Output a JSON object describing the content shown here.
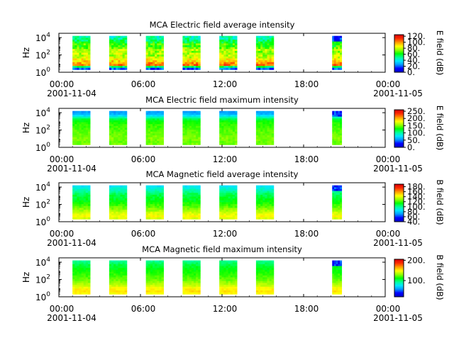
{
  "chart_data": [
    {
      "type": "heatmap",
      "title": "MCA  Electric field average intensity",
      "ylabel": "Hz",
      "colorbar_label": "E field (dB)",
      "colorbar_range": [
        0,
        125
      ],
      "colorbar_ticks": [
        "0.",
        "20.",
        "40.",
        "60.",
        "80.",
        "100.",
        "120."
      ],
      "colorbar_tick_values": [
        0,
        20,
        40,
        60,
        80,
        100,
        120
      ],
      "ylim_log10": [
        0,
        4.5
      ],
      "y_ticks": [
        {
          "base": "10",
          "exp": "0",
          "log": 0
        },
        {
          "base": "10",
          "exp": "2",
          "log": 2
        },
        {
          "base": "10",
          "exp": "4",
          "log": 4
        }
      ],
      "x_ticks": [
        {
          "time": "00:00",
          "date": "2001-11-04",
          "hour": 0
        },
        {
          "time": "06:00",
          "date": "",
          "hour": 6
        },
        {
          "time": "12:00",
          "date": "",
          "hour": 12
        },
        {
          "time": "18:00",
          "date": "",
          "hour": 18
        },
        {
          "time": "00:00",
          "date": "2001-11-05",
          "hour": 24
        }
      ],
      "profile": [
        20,
        55,
        105,
        100,
        92,
        88,
        82,
        78,
        80,
        75,
        80,
        72,
        65,
        68,
        60,
        55,
        50,
        45
      ],
      "noise": 10
    },
    {
      "type": "heatmap",
      "title": "MCA  Electric field maximum intensity",
      "ylabel": "Hz",
      "colorbar_label": "E field (dB)",
      "colorbar_range": [
        0,
        260
      ],
      "colorbar_ticks": [
        "0.",
        "50.",
        "100.",
        "150.",
        "200.",
        "250."
      ],
      "colorbar_tick_values": [
        0,
        50,
        100,
        150,
        200,
        250
      ],
      "ylim_log10": [
        0,
        4.5
      ],
      "y_ticks": [
        {
          "base": "10",
          "exp": "0",
          "log": 0
        },
        {
          "base": "10",
          "exp": "2",
          "log": 2
        },
        {
          "base": "10",
          "exp": "4",
          "log": 4
        }
      ],
      "x_ticks": [
        {
          "time": "00:00",
          "date": "2001-11-04",
          "hour": 0
        },
        {
          "time": "06:00",
          "date": "",
          "hour": 6
        },
        {
          "time": "12:00",
          "date": "",
          "hour": 12
        },
        {
          "time": "18:00",
          "date": "",
          "hour": 18
        },
        {
          "time": "00:00",
          "date": "2001-11-05",
          "hour": 24
        }
      ],
      "profile": [
        150,
        148,
        150,
        152,
        150,
        148,
        146,
        144,
        142,
        140,
        138,
        135,
        130,
        120,
        100,
        75,
        60,
        55
      ],
      "noise": 6
    },
    {
      "type": "heatmap",
      "title": "MCA  Magnetic field average intensity",
      "ylabel": "Hz",
      "colorbar_label": "B field (dB)",
      "colorbar_range": [
        40,
        190
      ],
      "colorbar_ticks": [
        "40.",
        "60.",
        "80.",
        "100.",
        "120.",
        "140.",
        "160.",
        "180."
      ],
      "colorbar_tick_values": [
        40,
        60,
        80,
        100,
        120,
        140,
        160,
        180
      ],
      "ylim_log10": [
        0,
        4.5
      ],
      "y_ticks": [
        {
          "base": "10",
          "exp": "0",
          "log": 0
        },
        {
          "base": "10",
          "exp": "2",
          "log": 2
        },
        {
          "base": "10",
          "exp": "4",
          "log": 4
        }
      ],
      "x_ticks": [
        {
          "time": "00:00",
          "date": "2001-11-04",
          "hour": 0
        },
        {
          "time": "06:00",
          "date": "",
          "hour": 6
        },
        {
          "time": "12:00",
          "date": "",
          "hour": 12
        },
        {
          "time": "18:00",
          "date": "",
          "hour": 18
        },
        {
          "time": "00:00",
          "date": "2001-11-05",
          "hour": 24
        }
      ],
      "profile": [
        140,
        145,
        142,
        138,
        132,
        128,
        124,
        120,
        117,
        114,
        112,
        110,
        108,
        105,
        100,
        95,
        90,
        85
      ],
      "noise": 4
    },
    {
      "type": "heatmap",
      "title": "MCA  Magnetic field maximum intensity",
      "ylabel": "Hz",
      "colorbar_label": "B field (dB)",
      "colorbar_range": [
        20,
        205
      ],
      "colorbar_ticks": [
        "100.",
        "200."
      ],
      "colorbar_tick_values": [
        100,
        200
      ],
      "ylim_log10": [
        0,
        4.5
      ],
      "y_ticks": [
        {
          "base": "10",
          "exp": "0",
          "log": 0
        },
        {
          "base": "10",
          "exp": "2",
          "log": 2
        },
        {
          "base": "10",
          "exp": "4",
          "log": 4
        }
      ],
      "x_ticks": [
        {
          "time": "00:00",
          "date": "2001-11-04",
          "hour": 0
        },
        {
          "time": "06:00",
          "date": "",
          "hour": 6
        },
        {
          "time": "12:00",
          "date": "",
          "hour": 12
        },
        {
          "time": "18:00",
          "date": "",
          "hour": 18
        },
        {
          "time": "00:00",
          "date": "2001-11-05",
          "hour": 24
        }
      ],
      "profile": [
        150,
        155,
        152,
        148,
        140,
        135,
        130,
        126,
        123,
        120,
        118,
        115,
        113,
        110,
        108,
        105,
        100,
        95
      ],
      "noise": 4
    }
  ],
  "time_axis": {
    "xlim_hours": [
      0,
      24
    ],
    "data_blocks_hours": [
      [
        1.0,
        2.3
      ],
      [
        3.7,
        5.0
      ],
      [
        6.4,
        7.7
      ],
      [
        9.1,
        10.4
      ],
      [
        11.8,
        13.1
      ],
      [
        14.5,
        15.8
      ]
    ],
    "sparse_block_hours": [
      20.1,
      20.8
    ]
  },
  "colormap": [
    "#0000c8",
    "#0000ff",
    "#0096ff",
    "#00e6ff",
    "#00ff96",
    "#00ff00",
    "#96ff00",
    "#ffff00",
    "#ffa000",
    "#ff3200",
    "#dc0000"
  ]
}
